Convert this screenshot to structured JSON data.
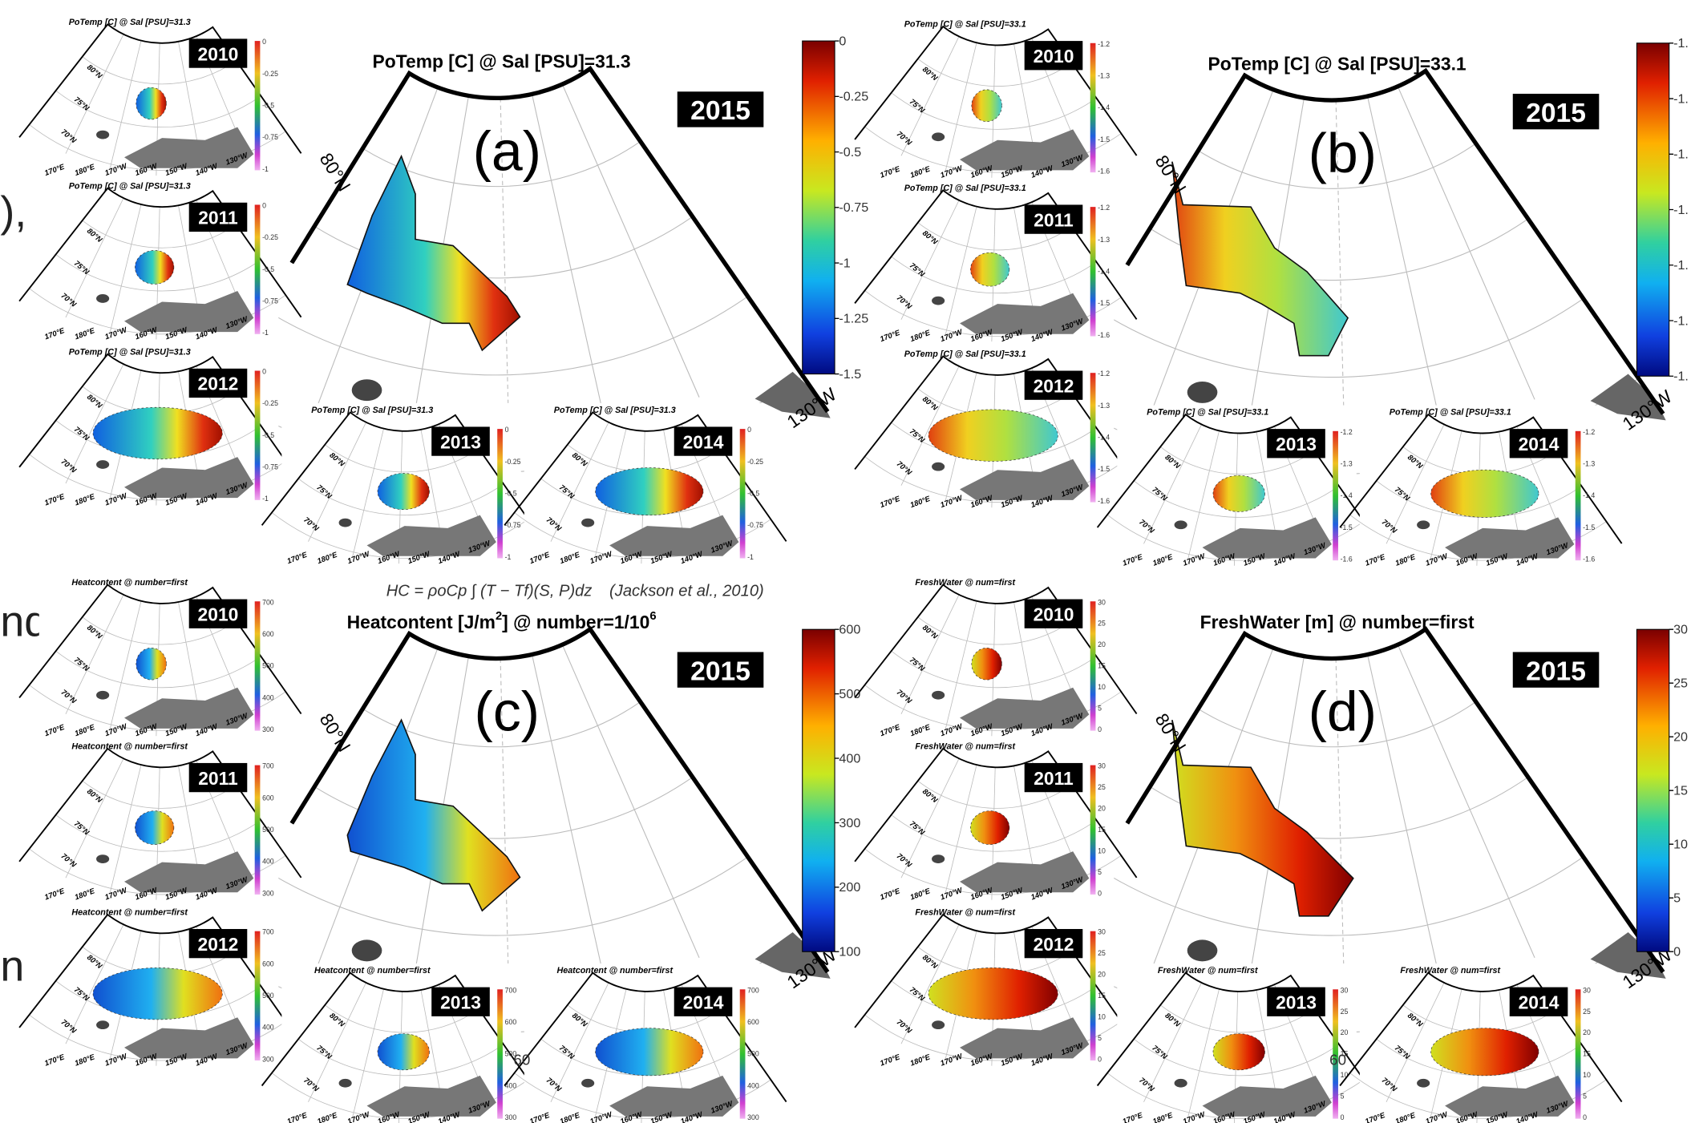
{
  "left_fragments": [
    "),",
    "nd",
    "n"
  ],
  "formula": "HC = ρoCp ∫ (T − Tf)(S, P)dz",
  "citation": "(Jackson et al., 2010)",
  "fragments_60": [
    "60",
    "60"
  ],
  "main_labels": {
    "lat": "80°N",
    "lon": "130°W"
  },
  "inset_axis_labels": {
    "lat": [
      "80°N",
      "75°N",
      "70°N"
    ],
    "lon": [
      "170°E",
      "180°E",
      "170°W",
      "160°W",
      "150°W",
      "140°W",
      "130°W"
    ]
  },
  "panels": [
    {
      "letter": "(a)",
      "title": [
        "PoTemp [C] @ Sal [PSU]=31.3"
      ],
      "year": "2015",
      "colorbar_ticks": [
        "0",
        "-0.25",
        "-0.5",
        "-0.75",
        "-1",
        "-1.25",
        "-1.5"
      ],
      "inset_title": "PoTemp [C] @ Sal [PSU]=31.3",
      "inset_colorbar_ticks": [
        "0",
        "-0.25",
        "-0.5",
        "-0.75",
        "-1"
      ],
      "inset_years": [
        "2010",
        "2011",
        "2012",
        "2013",
        "2014"
      ]
    },
    {
      "letter": "(b)",
      "title": [
        "PoTemp [C] @ Sal [PSU]=33.1"
      ],
      "year": "2015",
      "colorbar_ticks": [
        "-1.",
        "-1.",
        "-1.",
        "-1.",
        "-1.",
        "-1.",
        "-1."
      ],
      "inset_title": "PoTemp [C] @ Sal [PSU]=33.1",
      "inset_colorbar_ticks": [
        "-1.2",
        "-1.3",
        "-1.4",
        "-1.5",
        "-1.6"
      ],
      "inset_years": [
        "2010",
        "2011",
        "2012",
        "2013",
        "2014"
      ]
    },
    {
      "letter": "(c)",
      "title": [
        "Heatcontent [J/m",
        "2",
        "] @ number=1/10",
        "6"
      ],
      "year": "2015",
      "colorbar_ticks": [
        "600",
        "500",
        "400",
        "300",
        "200",
        "100"
      ],
      "inset_title": "Heatcontent @ number=first",
      "inset_colorbar_ticks": [
        "700",
        "600",
        "500",
        "400",
        "300"
      ],
      "inset_years": [
        "2010",
        "2011",
        "2012",
        "2013",
        "2014"
      ]
    },
    {
      "letter": "(d)",
      "title": [
        "FreshWater [m] @ number=first"
      ],
      "year": "2015",
      "colorbar_ticks": [
        "30",
        "25",
        "20",
        "15",
        "10",
        "5",
        "0"
      ],
      "inset_title": "FreshWater @ num=first",
      "inset_colorbar_ticks": [
        "30",
        "25",
        "20",
        "15",
        "10",
        "5",
        "0"
      ],
      "inset_years": [
        "2010",
        "2011",
        "2012",
        "2013",
        "2014"
      ]
    }
  ]
}
